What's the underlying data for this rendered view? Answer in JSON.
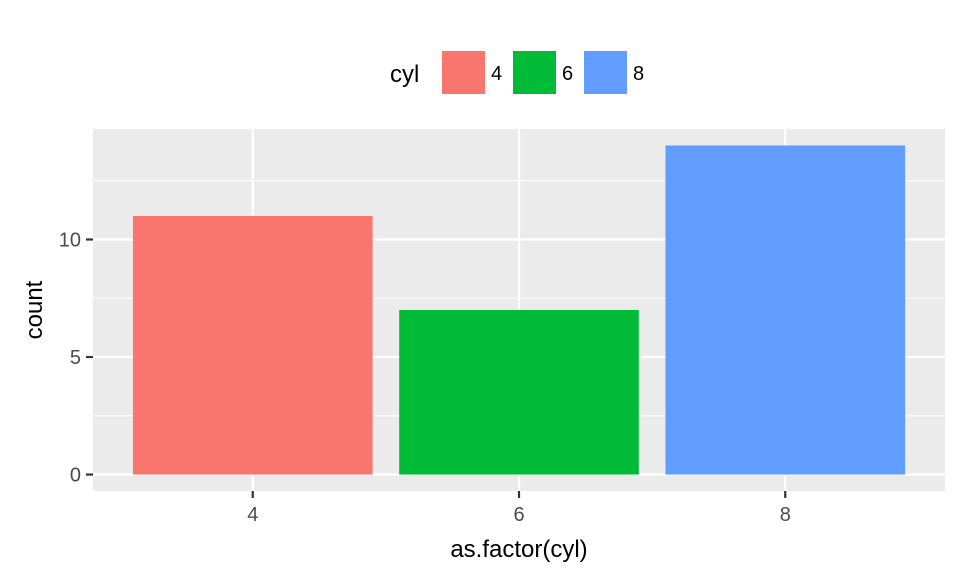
{
  "chart_data": {
    "type": "bar",
    "categories": [
      "4",
      "6",
      "8"
    ],
    "values": [
      11,
      7,
      14
    ],
    "colors": [
      "#F8766D",
      "#00BA38",
      "#619CFF"
    ],
    "title": "",
    "xlabel": "as.factor(cyl)",
    "ylabel": "count",
    "ylim": [
      -0.7,
      14.7
    ],
    "yticks": [
      0,
      5,
      10
    ],
    "grid": true,
    "panel_background": "#EBEBEB",
    "grid_color": "#FFFFFF",
    "legend": {
      "title": "cyl",
      "position": "top",
      "entries": [
        {
          "label": "4",
          "color": "#F8766D"
        },
        {
          "label": "6",
          "color": "#00BA38"
        },
        {
          "label": "8",
          "color": "#619CFF"
        }
      ]
    }
  }
}
